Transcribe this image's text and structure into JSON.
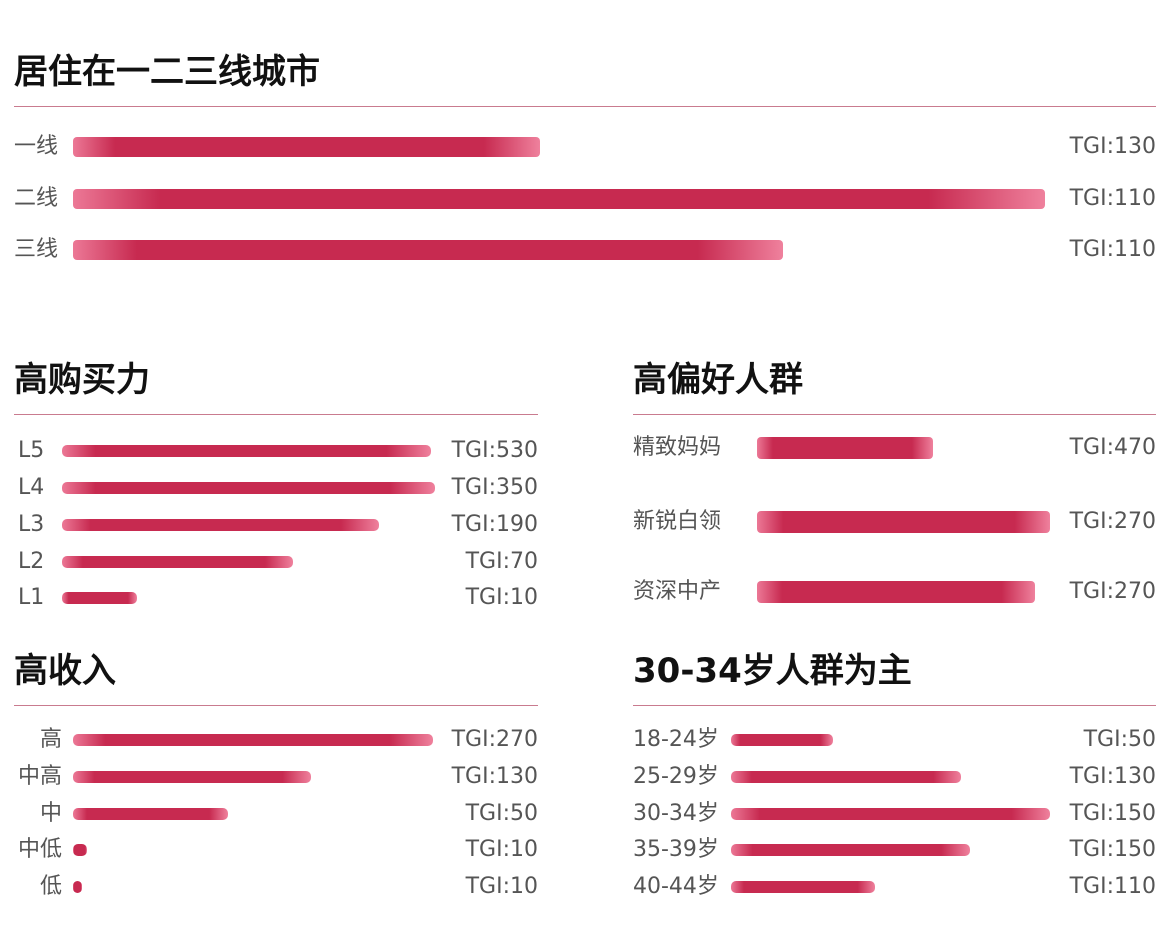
{
  "chart_data": [
    {
      "type": "bar",
      "title": "居住在一二三线城市",
      "categories": [
        "一线",
        "二线",
        "三线"
      ],
      "values": [
        48,
        100,
        73
      ],
      "value_labels": [
        "TGI:130",
        "TGI:110",
        "TGI:110"
      ]
    },
    {
      "type": "bar",
      "title": "高购买力",
      "categories": [
        "L5",
        "L4",
        "L3",
        "L2",
        "L1"
      ],
      "values": [
        99,
        100,
        85,
        62,
        20
      ],
      "value_labels": [
        "TGI:530",
        "TGI:350",
        "TGI:190",
        "TGI:70",
        "TGI:10"
      ]
    },
    {
      "type": "bar",
      "title": "高偏好人群",
      "categories": [
        "精致妈妈",
        "新锐白领",
        "资深中产"
      ],
      "values": [
        60,
        100,
        95
      ],
      "value_labels": [
        "TGI:470",
        "TGI:270",
        "TGI:270"
      ]
    },
    {
      "type": "bar",
      "title": "高收入",
      "categories": [
        "高",
        "中高",
        "中",
        "中低",
        "低"
      ],
      "values": [
        100,
        66,
        43,
        4,
        2.5
      ],
      "value_labels": [
        "TGI:270",
        "TGI:130",
        "TGI:50",
        "TGI:10",
        "TGI:10"
      ]
    },
    {
      "type": "bar",
      "title": "30-34岁人群为主",
      "categories": [
        "18-24岁",
        "25-29岁",
        "30-34岁",
        "35-39岁",
        "40-44岁"
      ],
      "values": [
        32,
        72,
        100,
        75,
        45
      ],
      "value_labels": [
        "TGI:50",
        "TGI:130",
        "TGI:150",
        "TGI:150",
        "TGI:110"
      ]
    }
  ],
  "colors": {
    "bar": "#c72a50",
    "bar_light": "#ec7896",
    "divider": "#c97b8f"
  }
}
